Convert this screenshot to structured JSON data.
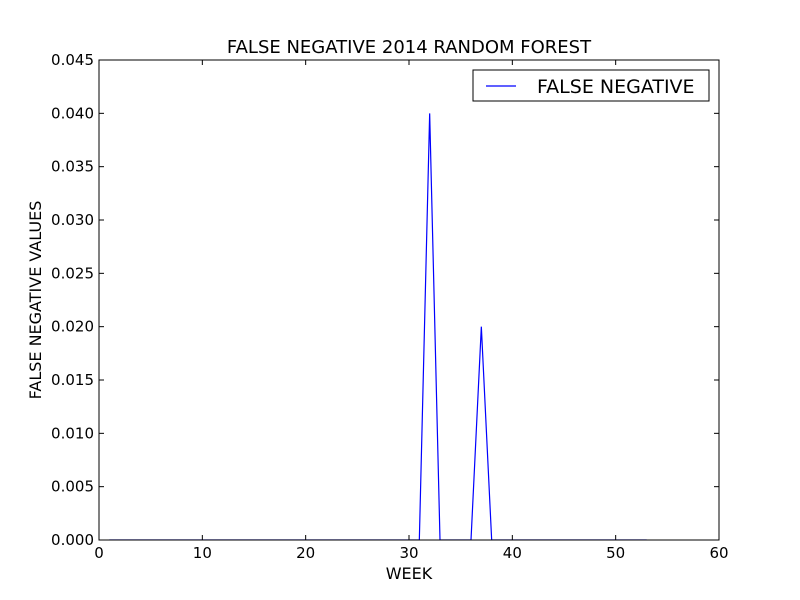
{
  "chart_data": {
    "type": "line",
    "title": "FALSE NEGATIVE 2014 RANDOM FOREST",
    "xlabel": "WEEK",
    "ylabel": "FALSE NEGATIVE VALUES",
    "xlim": [
      0,
      60
    ],
    "ylim": [
      0,
      0.045
    ],
    "xticks": [
      0,
      10,
      20,
      30,
      40,
      50,
      60
    ],
    "xtick_labels": [
      "0",
      "10",
      "20",
      "30",
      "40",
      "50",
      "60"
    ],
    "yticks": [
      0,
      0.005,
      0.01,
      0.015,
      0.02,
      0.025,
      0.03,
      0.035,
      0.04,
      0.045
    ],
    "ytick_labels": [
      "0.000",
      "0.005",
      "0.010",
      "0.015",
      "0.020",
      "0.025",
      "0.030",
      "0.035",
      "0.040",
      "0.045"
    ],
    "grid": false,
    "legend_position": "top-right",
    "series": [
      {
        "name": "FALSE NEGATIVE",
        "color": "#0000ff",
        "x": [
          1,
          2,
          3,
          4,
          5,
          6,
          7,
          8,
          9,
          10,
          11,
          12,
          13,
          14,
          15,
          16,
          17,
          18,
          19,
          20,
          21,
          22,
          23,
          24,
          25,
          26,
          27,
          28,
          29,
          30,
          31,
          32,
          33,
          34,
          35,
          36,
          37,
          38,
          39,
          40,
          41,
          42,
          43,
          44,
          45,
          46,
          47,
          48,
          49,
          50,
          51,
          52,
          53
        ],
        "y": [
          0,
          0,
          0,
          0,
          0,
          0,
          0,
          0,
          0,
          0,
          0,
          0,
          0,
          0,
          0,
          0,
          0,
          0,
          0,
          0,
          0,
          0,
          0,
          0,
          0,
          0,
          0,
          0,
          0,
          0,
          0,
          0.04,
          0,
          0,
          0,
          0,
          0.02,
          0,
          0,
          0,
          0,
          0,
          0,
          0,
          0,
          0,
          0,
          0,
          0,
          0,
          0,
          0,
          0
        ]
      }
    ]
  }
}
